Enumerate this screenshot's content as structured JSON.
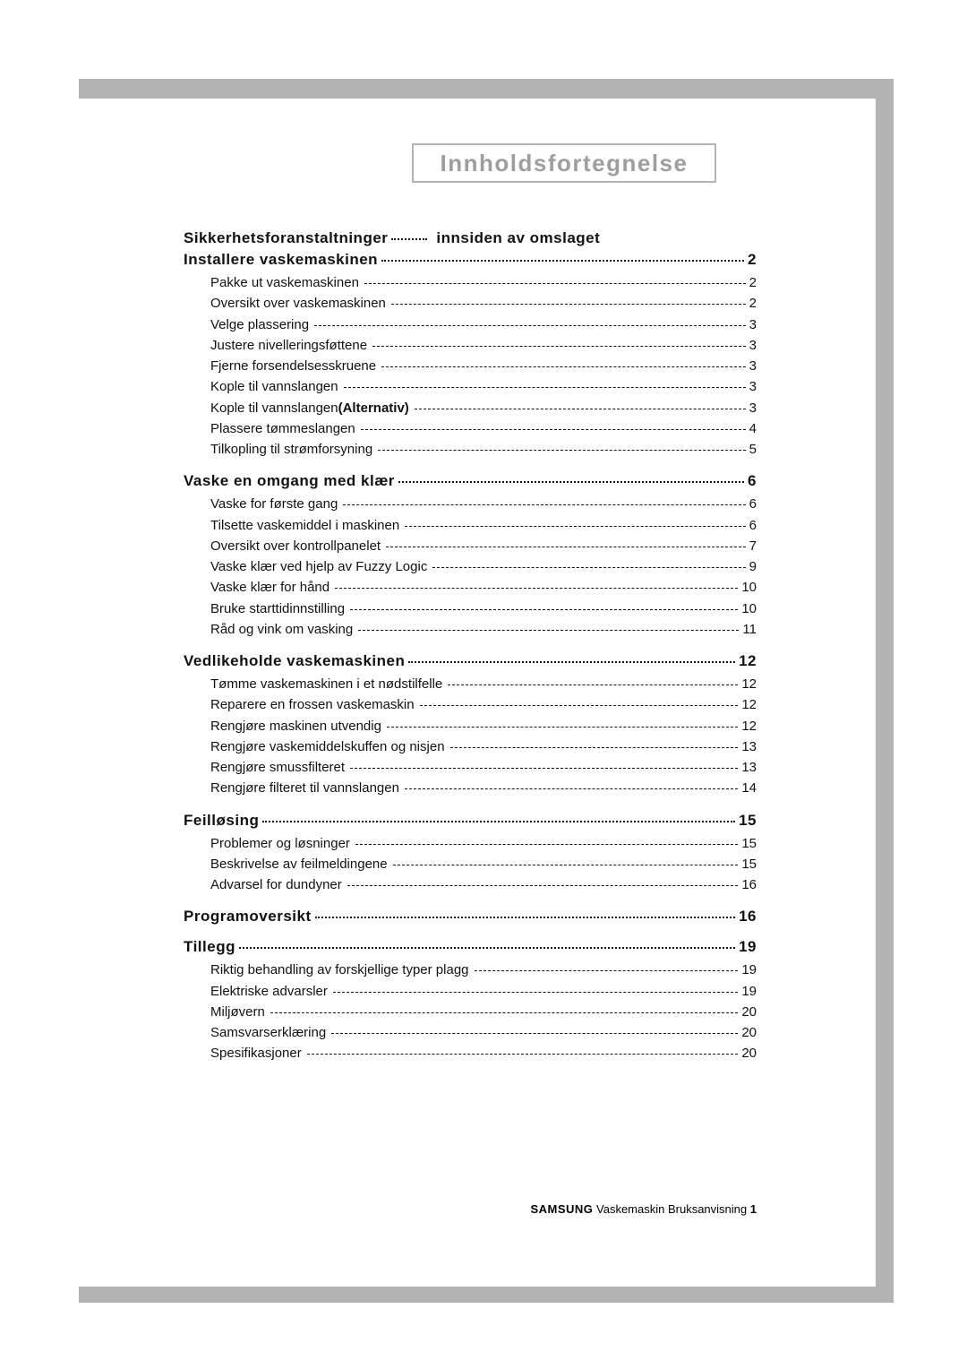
{
  "title": "Innholdsfortegnelse",
  "colors": {
    "accent_gray": "#b3b3b3",
    "title_gray": "#9e9e9e",
    "text": "#111111",
    "background": "#ffffff"
  },
  "first_line": {
    "left": "Sikkerhetsforanstaltninger",
    "right": "innsiden av omslaget"
  },
  "sections": [
    {
      "title": "Installere vaskemaskinen",
      "page": "2",
      "items": [
        {
          "label": "Pakke ut vaskemaskinen",
          "page": "2"
        },
        {
          "label": "Oversikt over vaskemaskinen",
          "page": "2"
        },
        {
          "label": "Velge plassering",
          "page": "3"
        },
        {
          "label": "Justere nivelleringsføttene",
          "page": "3"
        },
        {
          "label": "Fjerne forsendelsesskruene",
          "page": "3"
        },
        {
          "label": "Kople til vannslangen",
          "page": "3"
        },
        {
          "label": "Kople til vannslangen",
          "alt": "(Alternativ)",
          "page": "3"
        },
        {
          "label": "Plassere tømmeslangen",
          "page": "4"
        },
        {
          "label": "Tilkopling til strømforsyning",
          "page": "5"
        }
      ]
    },
    {
      "title": "Vaske en omgang med klær",
      "page": "6",
      "items": [
        {
          "label": "Vaske for første gang",
          "page": "6"
        },
        {
          "label": "Tilsette vaskemiddel i maskinen",
          "page": "6"
        },
        {
          "label": "Oversikt over kontrollpanelet",
          "page": "7"
        },
        {
          "label": "Vaske klær ved hjelp av Fuzzy Logic",
          "page": "9"
        },
        {
          "label": "Vaske klær for hånd",
          "page": "10"
        },
        {
          "label": "Bruke starttidinnstilling",
          "page": "10"
        },
        {
          "label": "Råd og vink om vasking",
          "page": "11"
        }
      ]
    },
    {
      "title": "Vedlikeholde vaskemaskinen",
      "page": "12",
      "items": [
        {
          "label": "Tømme vaskemaskinen i et nødstilfelle",
          "page": "12"
        },
        {
          "label": "Reparere en frossen vaskemaskin",
          "page": "12"
        },
        {
          "label": "Rengjøre maskinen utvendig",
          "page": "12"
        },
        {
          "label": "Rengjøre vaskemiddelskuffen og nisjen",
          "page": "13"
        },
        {
          "label": "Rengjøre smussfilteret",
          "page": "13"
        },
        {
          "label": "Rengjøre filteret til vannslangen",
          "page": "14"
        }
      ]
    },
    {
      "title": "Feilløsing",
      "page": "15",
      "items": [
        {
          "label": "Problemer og løsninger",
          "page": "15"
        },
        {
          "label": "Beskrivelse av feilmeldingene",
          "page": "15"
        },
        {
          "label": "Advarsel for dundyner",
          "page": "16"
        }
      ]
    },
    {
      "title": "Programoversikt",
      "page": "16",
      "items": []
    },
    {
      "title": "Tillegg",
      "page": "19",
      "items": [
        {
          "label": "Riktig behandling av forskjellige typer plagg",
          "page": "19"
        },
        {
          "label": "Elektriske advarsler",
          "page": "19"
        },
        {
          "label": "Miljøvern",
          "page": "20"
        },
        {
          "label": "Samsvarserklæring",
          "page": "20"
        },
        {
          "label": "Spesifikasjoner",
          "page": "20"
        }
      ]
    }
  ],
  "footer": {
    "brand": "SAMSUNG",
    "text": "Vaskemaskin Bruksanvisning",
    "page_num": "1"
  }
}
